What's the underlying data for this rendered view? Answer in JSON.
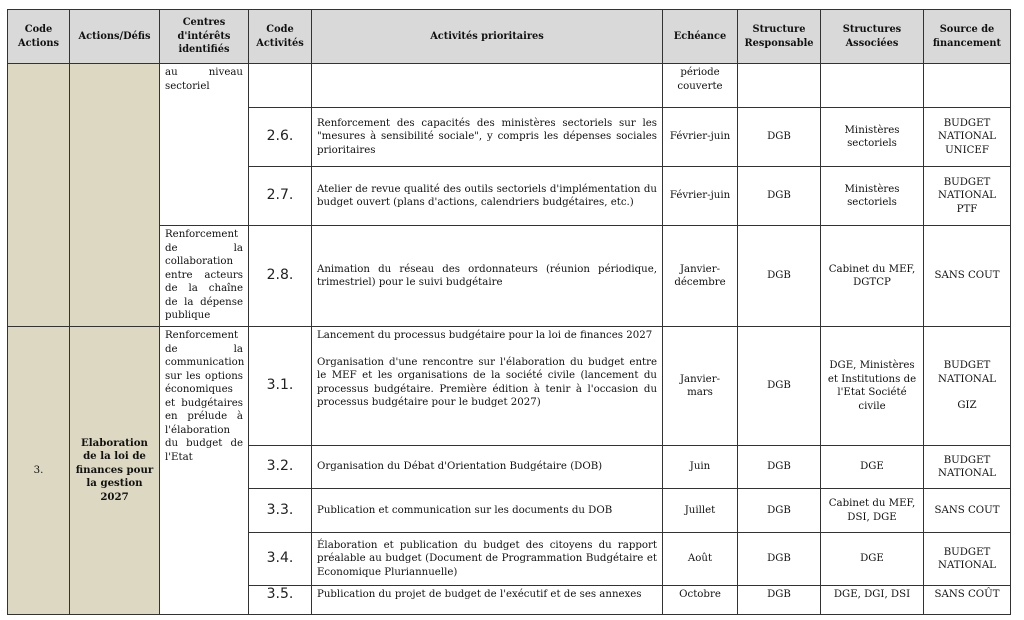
{
  "headers": [
    "Code Actions",
    "Actions/Défis",
    "Centres d'intérêts identifiés",
    "Code Activités",
    "Activités prioritaires",
    "Echéance",
    "Structure Responsable",
    "Structures Associées",
    "Source de financement"
  ],
  "group2": {
    "centre_a": "au niveau sectoriel",
    "centre_b": "Renforcement de la collaboration entre acteurs de la chaîne de la dépense publique",
    "rows": [
      {
        "code": "",
        "activity": "",
        "deadline": "période couverte",
        "resp": "",
        "assoc": "",
        "funding": ""
      },
      {
        "code": "2.6.",
        "activity": "Renforcement des capacités des ministères sectoriels sur les \"mesures à sensibilité sociale\", y compris les dépenses sociales prioritaires",
        "deadline": "Février-juin",
        "resp": "DGB",
        "assoc": "Ministères sectoriels",
        "funding": "BUDGET NATIONAL UNICEF"
      },
      {
        "code": "2.7.",
        "activity": "Atelier de revue qualité des outils sectoriels d'implémentation du budget ouvert (plans d'actions, calendriers budgétaires, etc.)",
        "deadline": "Février-juin",
        "resp": "DGB",
        "assoc": "Ministères sectoriels",
        "funding": "BUDGET NATIONAL PTF"
      },
      {
        "code": "2.8.",
        "activity": "Animation du réseau des ordonnateurs (réunion périodique, trimestriel) pour le suivi budgétaire",
        "deadline": "Janvier-décembre",
        "resp": "DGB",
        "assoc": "Cabinet du MEF, DGTCP",
        "funding": "SANS COUT"
      }
    ]
  },
  "group3": {
    "code_action": "3.",
    "action": "Elaboration de la loi de finances pour la gestion 2027",
    "centre": "Renforcement de la communication sur les options économiques et budgétaires en prélude à l'élaboration du budget de l'Etat",
    "rows": [
      {
        "code": "3.1.",
        "activity": "Lancement du processus budgétaire pour la loi de finances 2027",
        "activity2": "Organisation d'une rencontre sur l'élaboration du budget entre le MEF et les organisations de la société civile (lancement du processus budgétaire. Première édition à tenir à l'occasion du processus budgétaire pour le budget 2027)",
        "deadline": "Janvier-mars",
        "resp": "DGB",
        "assoc": "DGE, Ministères et Institutions de l'Etat Société civile",
        "funding": "BUDGET NATIONAL",
        "funding2": "GIZ"
      },
      {
        "code": "3.2.",
        "activity": "Organisation du Débat d'Orientation Budgétaire (DOB)",
        "deadline": "Juin",
        "resp": "DGB",
        "assoc": "DGE",
        "funding": "BUDGET NATIONAL"
      },
      {
        "code": "3.3.",
        "activity": "Publication et communication sur les documents du DOB",
        "deadline": "Juillet",
        "resp": "DGB",
        "assoc": "Cabinet du MEF, DSI, DGE",
        "funding": "SANS COUT"
      },
      {
        "code": "3.4.",
        "activity": "Élaboration et publication du budget des citoyens du rapport préalable au budget (Document de Programmation Budgétaire et Economique Pluriannuelle)",
        "deadline": "Août",
        "resp": "DGB",
        "assoc": "DGE",
        "funding": "BUDGET NATIONAL"
      },
      {
        "code": "3.5.",
        "activity": "Publication du projet de budget de l'exécutif et de ses annexes",
        "deadline": "Octobre",
        "resp": "DGB",
        "assoc": "DGE, DGI, DSI",
        "funding": "SANS COÛT"
      }
    ]
  },
  "colors": {
    "header_bg": "#d9d9d9",
    "action_bg": "#ddd8c2"
  }
}
